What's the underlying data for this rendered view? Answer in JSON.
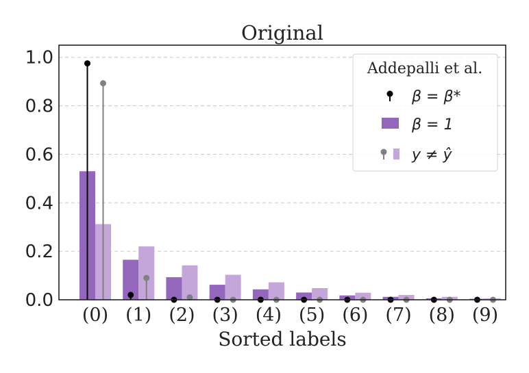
{
  "chart_data": {
    "type": "bar",
    "title": "Original",
    "xlabel": "Sorted labels",
    "ylabel": "",
    "ylim": [
      0,
      1.05
    ],
    "yticks": [
      "0.0",
      "0.2",
      "0.4",
      "0.6",
      "0.8",
      "1.0"
    ],
    "categories": [
      "(0)",
      "(1)",
      "(2)",
      "(3)",
      "(4)",
      "(5)",
      "(6)",
      "(7)",
      "(8)",
      "(9)"
    ],
    "grid": "y-dashed",
    "legend": {
      "placement": "top-right",
      "title": "Addepalli et al.",
      "entries": [
        "β = β*",
        "β = 1",
        "y ≠ ŷ"
      ]
    },
    "series": [
      {
        "name": "β = 1",
        "kind": "bar",
        "color": "#9467bd",
        "values": [
          0.53,
          0.165,
          0.093,
          0.062,
          0.043,
          0.03,
          0.018,
          0.012,
          0.006,
          0.004
        ]
      },
      {
        "name": "y ≠ ŷ",
        "kind": "bar",
        "color": "#c5a6db",
        "values": [
          0.312,
          0.22,
          0.142,
          0.103,
          0.072,
          0.048,
          0.029,
          0.02,
          0.012,
          0.006
        ]
      },
      {
        "name": "β = β*",
        "kind": "stem",
        "color": "#000000",
        "values": [
          0.975,
          0.02,
          0.0,
          0.0,
          0.0,
          0.0,
          0.0,
          0.0,
          0.0,
          0.0
        ]
      },
      {
        "name": "y ≠ ŷ",
        "kind": "stem",
        "color": "#808080",
        "values": [
          0.893,
          0.09,
          0.01,
          0.0,
          0.0,
          0.0,
          0.0,
          0.0,
          0.0,
          0.0
        ]
      }
    ]
  }
}
